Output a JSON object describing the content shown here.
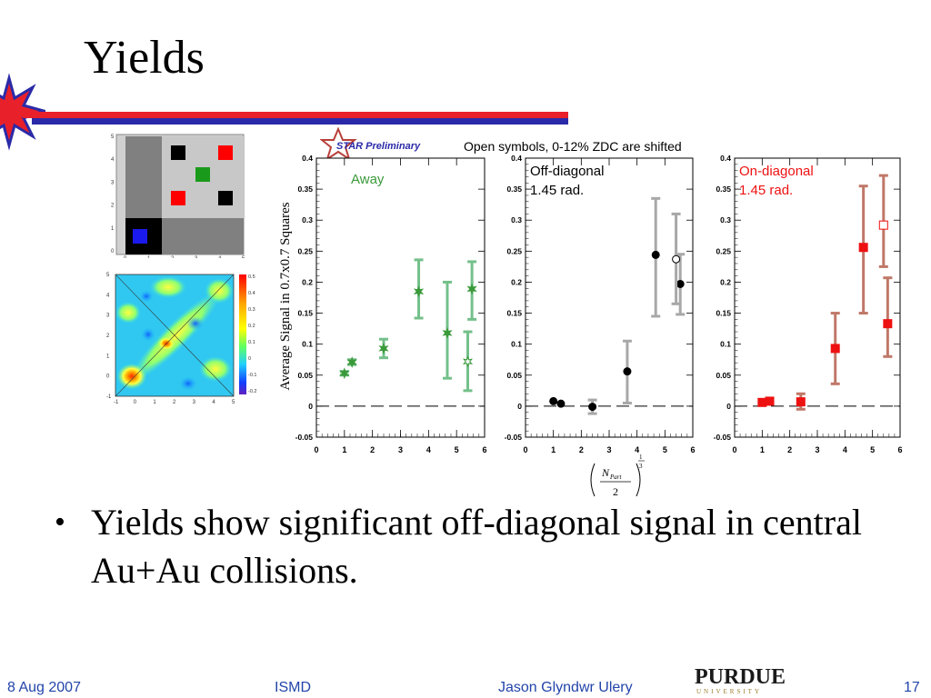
{
  "slide": {
    "title": "Yields",
    "caption": "Open symbols, 0-12% ZDC are shifted",
    "star_logo_text": "STAR Preliminary",
    "bullet": "Yields show significant off-diagonal signal in central Au+Au collisions.",
    "footer": {
      "date": "8 Aug 2007",
      "conference": "ISMD",
      "author": "Jason Glyndwr Ulery",
      "page": "17"
    },
    "logo_text": "PURDUE",
    "logo_subtext": "UNIVERSITY"
  },
  "colors": {
    "title_bar_red": "#e8202a",
    "title_bar_blue": "#2a2aa8",
    "footer_text": "#2244aa",
    "away": "#3a9a3a",
    "away_sys": "#74c08a",
    "off": "#000000",
    "off_sys": "#a8a8a8",
    "on": "#ee1111",
    "on_sys": "#c07868"
  },
  "chart_data": [
    {
      "type": "scatter",
      "panel_label": "Away",
      "ylabel": "Average Signal in 0.7x0.7 Squares",
      "xlim": [
        0,
        6
      ],
      "ylim": [
        -0.05,
        0.4
      ],
      "x_ticks": [
        "0",
        "1",
        "2",
        "3",
        "4",
        "5",
        "6"
      ],
      "y_ticks": [
        "-0.05",
        "0",
        "0.05",
        "0.1",
        "0.15",
        "0.2",
        "0.25",
        "0.3",
        "0.35",
        "0.4"
      ],
      "series": [
        {
          "marker": "star",
          "filled": true,
          "x": [
            1.0,
            1.27,
            2.4,
            3.65,
            4.67,
            5.55
          ],
          "y": [
            0.053,
            0.071,
            0.093,
            0.185,
            0.118,
            0.189
          ],
          "sys_low": [
            0.05,
            0.067,
            0.078,
            0.142,
            0.045,
            0.14
          ],
          "sys_high": [
            0.056,
            0.075,
            0.108,
            0.236,
            0.2,
            0.233
          ]
        },
        {
          "marker": "star",
          "filled": false,
          "x": [
            5.4
          ],
          "y": [
            0.072
          ],
          "sys_low": [
            0.025
          ],
          "sys_high": [
            0.12
          ]
        }
      ]
    },
    {
      "type": "scatter",
      "panel_label": "Off-diagonal 1.45 rad.",
      "xlim": [
        0,
        6
      ],
      "ylim": [
        -0.05,
        0.4
      ],
      "x_ticks": [
        "0",
        "1",
        "2",
        "3",
        "4",
        "5",
        "6"
      ],
      "y_ticks": [
        "-0.05",
        "0",
        "0.05",
        "0.1",
        "0.15",
        "0.2",
        "0.25",
        "0.3",
        "0.35",
        "0.4"
      ],
      "xlabel": "(N_Part / 2)^(1/3)",
      "series": [
        {
          "marker": "circle",
          "filled": true,
          "x": [
            1.0,
            1.27,
            2.4,
            3.65,
            4.67,
            5.55
          ],
          "y": [
            0.008,
            0.004,
            -0.001,
            0.056,
            0.244,
            0.197
          ],
          "sys_low": [
            0.006,
            0.002,
            -0.012,
            0.005,
            0.145,
            0.148
          ],
          "sys_high": [
            0.01,
            0.006,
            0.01,
            0.105,
            0.335,
            0.245
          ]
        },
        {
          "marker": "circle",
          "filled": false,
          "x": [
            5.4
          ],
          "y": [
            0.237
          ],
          "sys_low": [
            0.165
          ],
          "sys_high": [
            0.31
          ]
        }
      ]
    },
    {
      "type": "scatter",
      "panel_label": "On-diagonal 1.45 rad.",
      "xlim": [
        0,
        6
      ],
      "ylim": [
        -0.05,
        0.4
      ],
      "x_ticks": [
        "0",
        "1",
        "2",
        "3",
        "4",
        "5",
        "6"
      ],
      "y_ticks": [
        "-0.05",
        "0",
        "0.05",
        "0.1",
        "0.15",
        "0.2",
        "0.25",
        "0.3",
        "0.35",
        "0.4"
      ],
      "series": [
        {
          "marker": "square",
          "filled": true,
          "x": [
            1.0,
            1.27,
            2.4,
            3.65,
            4.67,
            5.55
          ],
          "y": [
            0.006,
            0.008,
            0.007,
            0.093,
            0.256,
            0.133
          ],
          "sys_low": [
            0.004,
            0.006,
            -0.005,
            0.036,
            0.15,
            0.08
          ],
          "sys_high": [
            0.008,
            0.01,
            0.02,
            0.15,
            0.355,
            0.207
          ]
        },
        {
          "marker": "square",
          "filled": false,
          "x": [
            5.4
          ],
          "y": [
            0.292
          ],
          "sys_low": [
            0.225
          ],
          "sys_high": [
            0.372
          ]
        }
      ]
    }
  ],
  "heatmap": {
    "x_ticks": [
      "-1",
      "0",
      "1",
      "2",
      "3",
      "4",
      "5"
    ],
    "y_ticks": [
      "-1",
      "0",
      "1",
      "2",
      "3",
      "4",
      "5"
    ],
    "colorbar_ticks": [
      "0.5",
      "0.4",
      "0.3",
      "0.2",
      "0.1",
      "0",
      "-0.1",
      "-0.2"
    ]
  },
  "schematic": {
    "x_ticks": [
      "0",
      "1",
      "2",
      "3",
      "4",
      "5"
    ],
    "y_ticks": [
      "0",
      "1",
      "2",
      "3",
      "4",
      "5"
    ]
  }
}
